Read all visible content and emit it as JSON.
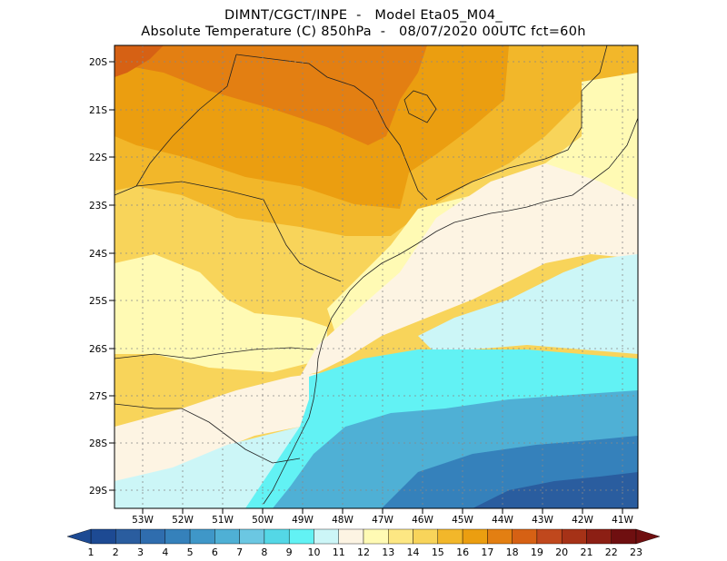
{
  "header": {
    "line1": "DIMNT/CGCT/INPE  -   Model Eta05_M04_",
    "line2": "Absolute Temperature (C) 850hPa  -   08/07/2020 00UTC fct=60h"
  },
  "axes": {
    "lat_labels": [
      "20S",
      "21S",
      "22S",
      "23S",
      "24S",
      "25S",
      "26S",
      "27S",
      "28S",
      "29S"
    ],
    "lon_labels": [
      "53W",
      "52W",
      "51W",
      "50W",
      "49W",
      "48W",
      "47W",
      "46W",
      "45W",
      "44W",
      "43W",
      "42W",
      "41W"
    ]
  },
  "colorbar": {
    "labels": [
      "1",
      "2",
      "3",
      "4",
      "5",
      "6",
      "7",
      "8",
      "9",
      "10",
      "11",
      "12",
      "13",
      "14",
      "15",
      "16",
      "17",
      "18",
      "19",
      "20",
      "21",
      "22",
      "23"
    ],
    "colors": [
      "#1d4a93",
      "#2a5d9f",
      "#2f6dae",
      "#3581bb",
      "#3f97c8",
      "#4fb0d5",
      "#6bc7e2",
      "#54d7e6",
      "#62f2f4",
      "#ccf6f7",
      "#fdf4e3",
      "#fffab4",
      "#fde783",
      "#f8d45a",
      "#f2b72a",
      "#eb9e10",
      "#e37f12",
      "#d66114",
      "#c0481d",
      "#a63217",
      "#8c1f14",
      "#6f0f10"
    ]
  },
  "map_style": {
    "gridlines": "dotted",
    "region_colors": {
      "hot": "#e37f12",
      "warm": "#eb9e10",
      "mild": "#f2b72a",
      "yellow": "#f8d45a",
      "pale": "#fffab4",
      "cream": "#fdf4e3",
      "cool": "#ccf6f7",
      "cyan": "#62f2f4",
      "blue": "#4fb0d5",
      "deep": "#3581bb",
      "deepest": "#2a5d9f"
    }
  }
}
